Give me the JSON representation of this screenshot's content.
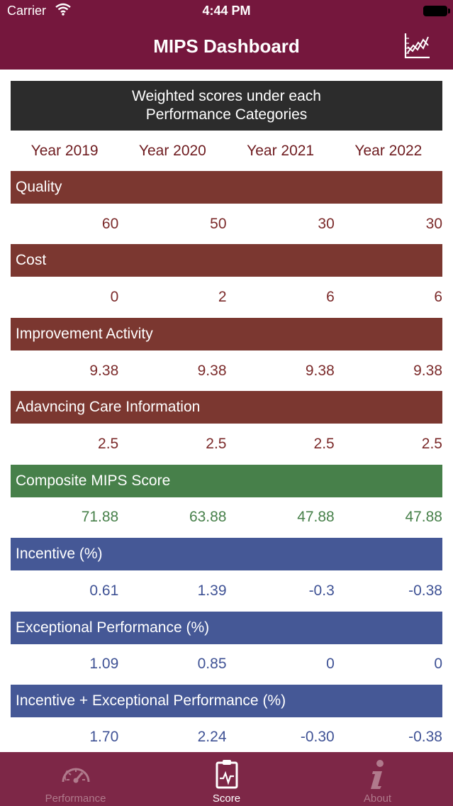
{
  "status_bar": {
    "carrier": "Carrier",
    "time": "4:44 PM"
  },
  "nav": {
    "title": "MIPS Dashboard",
    "chart_icon": "line-chart-icon"
  },
  "banner": {
    "text": "Weighted scores under each Performance Categories"
  },
  "years": [
    "Year 2019",
    "Year 2020",
    "Year 2021",
    "Year 2022"
  ],
  "categories": [
    {
      "label": "Quality",
      "values": [
        "60",
        "50",
        "30",
        "30"
      ],
      "color": "#7b3730"
    },
    {
      "label": "Cost",
      "values": [
        "0",
        "2",
        "6",
        "6"
      ],
      "color": "#7b3730"
    },
    {
      "label": "Improvement Activity",
      "values": [
        "9.38",
        "9.38",
        "9.38",
        "9.38"
      ],
      "color": "#7b3730"
    },
    {
      "label": "Adavncing Care Information",
      "values": [
        "2.5",
        "2.5",
        "2.5",
        "2.5"
      ],
      "color": "#7b3730"
    },
    {
      "label": "Composite MIPS Score",
      "values": [
        "71.88",
        "63.88",
        "47.88",
        "47.88"
      ],
      "color": "#47804a"
    },
    {
      "label": "Incentive (%)",
      "values": [
        "0.61",
        "1.39",
        "-0.3",
        "-0.38"
      ],
      "color": "#455896"
    },
    {
      "label": "Exceptional Performance (%)",
      "values": [
        "1.09",
        "0.85",
        "0",
        "0"
      ],
      "color": "#455896"
    },
    {
      "label": "Incentive + Exceptional Performance (%)",
      "values": [
        "1.70",
        "2.24",
        "-0.30",
        "-0.38"
      ],
      "color": "#455896"
    }
  ],
  "tabs": [
    {
      "label": "Performance",
      "icon": "speedometer-icon",
      "active": false
    },
    {
      "label": "Score",
      "icon": "clipboard-chart-icon",
      "active": true
    },
    {
      "label": "About",
      "icon": "info-icon",
      "active": false
    }
  ]
}
